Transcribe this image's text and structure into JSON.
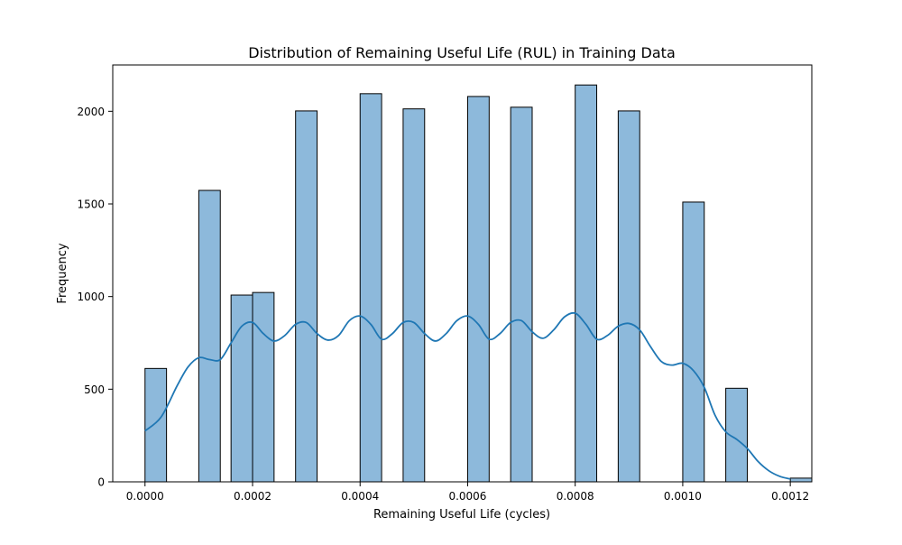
{
  "chart_data": {
    "type": "bar",
    "subtype": "histogram-with-kde",
    "title": "Distribution of Remaining Useful Life (RUL) in Training Data",
    "xlabel": "Remaining Useful Life (cycles)",
    "ylabel": "Frequency",
    "xlim": [
      -6e-05,
      0.00124
    ],
    "ylim": [
      0,
      2250
    ],
    "grid": false,
    "legend": "none",
    "x_ticks": [
      0.0,
      0.0002,
      0.0004,
      0.0006,
      0.0008,
      0.001,
      0.0012
    ],
    "x_tick_labels": [
      "0.0000",
      "0.0002",
      "0.0004",
      "0.0006",
      "0.0008",
      "0.0010",
      "0.0012"
    ],
    "y_ticks": [
      0,
      500,
      1000,
      1500,
      2000
    ],
    "y_tick_labels": [
      "0",
      "500",
      "1000",
      "1500",
      "2000"
    ],
    "bar_color": "#8db9db",
    "edge_color": "#000000",
    "kde_color": "#1f77b4",
    "bins": [
      {
        "x0": 0.0,
        "x1": 4e-05,
        "count": 612
      },
      {
        "x0": 0.0001,
        "x1": 0.00014,
        "count": 1573
      },
      {
        "x0": 0.00016,
        "x1": 0.0002,
        "count": 1008
      },
      {
        "x0": 0.0002,
        "x1": 0.00024,
        "count": 1022
      },
      {
        "x0": 0.00028,
        "x1": 0.00032,
        "count": 2002
      },
      {
        "x0": 0.0004,
        "x1": 0.00044,
        "count": 2095
      },
      {
        "x0": 0.00048,
        "x1": 0.00052,
        "count": 2013
      },
      {
        "x0": 0.0006,
        "x1": 0.00064,
        "count": 2080
      },
      {
        "x0": 0.00068,
        "x1": 0.00072,
        "count": 2022
      },
      {
        "x0": 0.0008,
        "x1": 0.00084,
        "count": 2142
      },
      {
        "x0": 0.00088,
        "x1": 0.00092,
        "count": 2002
      },
      {
        "x0": 0.001,
        "x1": 0.00104,
        "count": 1510
      },
      {
        "x0": 0.00108,
        "x1": 0.00112,
        "count": 505
      },
      {
        "x0": 0.0012,
        "x1": 0.00124,
        "count": 20
      }
    ],
    "kde": {
      "x": [
        0.0,
        3e-05,
        6e-05,
        8e-05,
        0.0001,
        0.00012,
        0.00014,
        0.00016,
        0.00018,
        0.0002,
        0.00022,
        0.00024,
        0.00026,
        0.00028,
        0.0003,
        0.00032,
        0.00034,
        0.00036,
        0.00038,
        0.0004,
        0.00042,
        0.00044,
        0.00046,
        0.00048,
        0.0005,
        0.00052,
        0.00054,
        0.00056,
        0.00058,
        0.0006,
        0.00062,
        0.00064,
        0.00066,
        0.00068,
        0.0007,
        0.00072,
        0.00074,
        0.00076,
        0.00078,
        0.0008,
        0.00082,
        0.00084,
        0.00086,
        0.00088,
        0.0009,
        0.00092,
        0.00094,
        0.00096,
        0.00098,
        0.001,
        0.00102,
        0.00104,
        0.00106,
        0.00108,
        0.0011,
        0.00112,
        0.00114,
        0.00116,
        0.00118,
        0.0012
      ],
      "y": [
        275,
        350,
        520,
        620,
        670,
        660,
        660,
        750,
        840,
        860,
        800,
        760,
        790,
        850,
        860,
        800,
        765,
        790,
        870,
        895,
        850,
        770,
        800,
        860,
        860,
        800,
        760,
        800,
        870,
        895,
        850,
        770,
        800,
        860,
        870,
        810,
        775,
        820,
        890,
        910,
        850,
        770,
        790,
        840,
        855,
        820,
        730,
        650,
        630,
        640,
        600,
        510,
        360,
        270,
        230,
        180,
        110,
        60,
        30,
        15
      ]
    }
  }
}
